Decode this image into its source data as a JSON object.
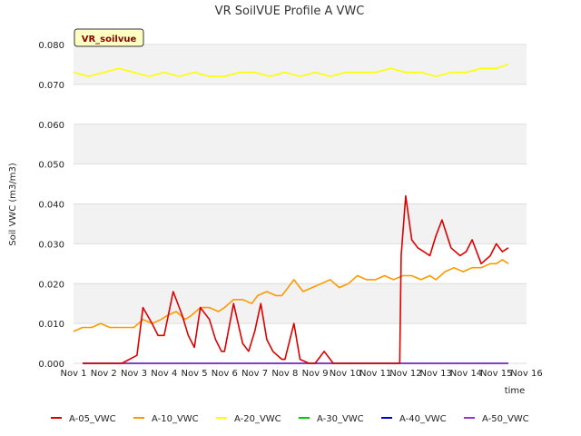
{
  "chart_data": {
    "type": "line",
    "title": "VR SoilVUE Profile A VWC",
    "xlabel": "time",
    "ylabel": "Soil VWC (m3/m3)",
    "site_badge": "VR_soilvue",
    "xlim": [
      1,
      16
    ],
    "ylim": [
      0,
      0.08
    ],
    "x_ticks": [
      {
        "v": 1,
        "label": "Nov 1"
      },
      {
        "v": 2,
        "label": "Nov 2"
      },
      {
        "v": 3,
        "label": "Nov 3"
      },
      {
        "v": 4,
        "label": "Nov 4"
      },
      {
        "v": 5,
        "label": "Nov 5"
      },
      {
        "v": 6,
        "label": "Nov 6"
      },
      {
        "v": 7,
        "label": "Nov 7"
      },
      {
        "v": 8,
        "label": "Nov 8"
      },
      {
        "v": 9,
        "label": "Nov 9"
      },
      {
        "v": 10,
        "label": "Nov 10"
      },
      {
        "v": 11,
        "label": "Nov 11"
      },
      {
        "v": 12,
        "label": "Nov 12"
      },
      {
        "v": 13,
        "label": "Nov 13"
      },
      {
        "v": 14,
        "label": "Nov 14"
      },
      {
        "v": 15,
        "label": "Nov 15"
      },
      {
        "v": 16,
        "label": "Nov 16"
      }
    ],
    "y_ticks": [
      {
        "v": 0.0,
        "label": "0.000"
      },
      {
        "v": 0.01,
        "label": "0.010"
      },
      {
        "v": 0.02,
        "label": "0.020"
      },
      {
        "v": 0.03,
        "label": "0.030"
      },
      {
        "v": 0.04,
        "label": "0.040"
      },
      {
        "v": 0.05,
        "label": "0.050"
      },
      {
        "v": 0.06,
        "label": "0.060"
      },
      {
        "v": 0.07,
        "label": "0.070"
      },
      {
        "v": 0.08,
        "label": "0.080"
      }
    ],
    "grid": true,
    "legend": "bottom",
    "series": [
      {
        "name": "A-05_VWC",
        "color": "#dd0000",
        "x": [
          1.3,
          2.6,
          3.1,
          3.3,
          3.6,
          3.8,
          4.0,
          4.3,
          4.6,
          4.8,
          5.0,
          5.2,
          5.5,
          5.7,
          5.9,
          6.0,
          6.3,
          6.6,
          6.8,
          7.0,
          7.2,
          7.4,
          7.6,
          7.9,
          8.0,
          8.3,
          8.5,
          8.8,
          9.0,
          9.3,
          9.6,
          10.0,
          10.5,
          11.0,
          11.3,
          11.8,
          11.85,
          12.0,
          12.2,
          12.4,
          12.6,
          12.8,
          13.0,
          13.2,
          13.5,
          13.8,
          14.0,
          14.2,
          14.5,
          14.8,
          15.0,
          15.2,
          15.4
        ],
        "y": [
          0,
          0,
          0.002,
          0.014,
          0.01,
          0.007,
          0.007,
          0.018,
          0.012,
          0.007,
          0.004,
          0.014,
          0.011,
          0.006,
          0.003,
          0.003,
          0.015,
          0.005,
          0.003,
          0.008,
          0.015,
          0.006,
          0.003,
          0.001,
          0.001,
          0.01,
          0.001,
          0.0,
          0.0,
          0.003,
          0.0,
          0.0,
          0.0,
          0.0,
          0.0,
          0.0,
          0.027,
          0.042,
          0.031,
          0.029,
          0.028,
          0.027,
          0.032,
          0.036,
          0.029,
          0.027,
          0.028,
          0.031,
          0.025,
          0.027,
          0.03,
          0.028,
          0.029
        ]
      },
      {
        "name": "A-10_VWC",
        "color": "#ff9900",
        "x": [
          1.0,
          1.3,
          1.6,
          1.9,
          2.2,
          2.5,
          2.8,
          3.0,
          3.3,
          3.6,
          3.9,
          4.1,
          4.4,
          4.7,
          4.9,
          5.2,
          5.5,
          5.8,
          6.0,
          6.3,
          6.6,
          6.9,
          7.1,
          7.4,
          7.7,
          7.9,
          8.0,
          8.3,
          8.6,
          8.9,
          9.2,
          9.5,
          9.8,
          10.1,
          10.4,
          10.7,
          11.0,
          11.3,
          11.6,
          11.9,
          12.2,
          12.5,
          12.8,
          13.0,
          13.3,
          13.6,
          13.9,
          14.2,
          14.5,
          14.8,
          15.0,
          15.2,
          15.4
        ],
        "y": [
          0.008,
          0.009,
          0.009,
          0.01,
          0.009,
          0.009,
          0.009,
          0.009,
          0.011,
          0.01,
          0.011,
          0.012,
          0.013,
          0.011,
          0.012,
          0.014,
          0.014,
          0.013,
          0.014,
          0.016,
          0.016,
          0.015,
          0.017,
          0.018,
          0.017,
          0.017,
          0.018,
          0.021,
          0.018,
          0.019,
          0.02,
          0.021,
          0.019,
          0.02,
          0.022,
          0.021,
          0.021,
          0.022,
          0.021,
          0.022,
          0.022,
          0.021,
          0.022,
          0.021,
          0.023,
          0.024,
          0.023,
          0.024,
          0.024,
          0.025,
          0.025,
          0.026,
          0.025
        ]
      },
      {
        "name": "A-20_VWC",
        "color": "#ffff00",
        "x": [
          1.0,
          1.5,
          2.0,
          2.5,
          3.0,
          3.5,
          4.0,
          4.5,
          5.0,
          5.5,
          6.0,
          6.5,
          7.0,
          7.5,
          8.0,
          8.5,
          9.0,
          9.5,
          10.0,
          10.5,
          11.0,
          11.5,
          12.0,
          12.5,
          13.0,
          13.5,
          14.0,
          14.5,
          15.0,
          15.4
        ],
        "y": [
          0.073,
          0.072,
          0.073,
          0.074,
          0.073,
          0.072,
          0.073,
          0.072,
          0.073,
          0.072,
          0.072,
          0.073,
          0.073,
          0.072,
          0.073,
          0.072,
          0.073,
          0.072,
          0.073,
          0.073,
          0.073,
          0.074,
          0.073,
          0.073,
          0.072,
          0.073,
          0.073,
          0.074,
          0.074,
          0.075
        ]
      },
      {
        "name": "A-30_VWC",
        "color": "#00cc00",
        "x": [
          1.3,
          15.4
        ],
        "y": [
          0,
          0
        ]
      },
      {
        "name": "A-40_VWC",
        "color": "#0000cc",
        "x": [
          1.3,
          15.4
        ],
        "y": [
          0,
          0
        ]
      },
      {
        "name": "A-50_VWC",
        "color": "#9933cc",
        "x": [
          1.3,
          15.4
        ],
        "y": [
          0,
          0
        ]
      }
    ]
  }
}
